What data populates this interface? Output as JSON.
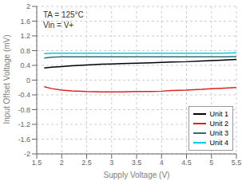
{
  "chart_data": {
    "type": "line",
    "xlabel": "Supply Voltage (V)",
    "ylabel": "Input Offset Voltage (mV)",
    "annotations": [
      "TA = 125°C",
      "Vin = V+"
    ],
    "x": [
      1.65,
      1.8,
      2.0,
      2.2,
      2.5,
      2.8,
      3.0,
      3.2,
      3.5,
      3.8,
      4.0,
      4.2,
      4.5,
      4.8,
      5.0,
      5.2,
      5.5
    ],
    "series": [
      {
        "name": "Unit 1",
        "color": "#000000",
        "values": [
          0.33,
          0.35,
          0.37,
          0.39,
          0.41,
          0.43,
          0.44,
          0.45,
          0.46,
          0.47,
          0.48,
          0.49,
          0.5,
          0.52,
          0.53,
          0.54,
          0.56
        ]
      },
      {
        "name": "Unit 2",
        "color": "#dd2222",
        "values": [
          -0.18,
          -0.23,
          -0.27,
          -0.29,
          -0.31,
          -0.32,
          -0.32,
          -0.32,
          -0.31,
          -0.31,
          -0.3,
          -0.28,
          -0.27,
          -0.25,
          -0.23,
          -0.22,
          -0.2
        ]
      },
      {
        "name": "Unit 3",
        "color": "#2e6e6e",
        "values": [
          0.6,
          0.62,
          0.63,
          0.63,
          0.63,
          0.63,
          0.63,
          0.63,
          0.63,
          0.63,
          0.63,
          0.63,
          0.63,
          0.63,
          0.63,
          0.63,
          0.64
        ]
      },
      {
        "name": "Unit 4",
        "color": "#00ccdd",
        "values": [
          0.72,
          0.73,
          0.73,
          0.73,
          0.73,
          0.73,
          0.73,
          0.73,
          0.73,
          0.73,
          0.73,
          0.73,
          0.73,
          0.73,
          0.73,
          0.73,
          0.74
        ]
      }
    ],
    "xlim": [
      1.5,
      5.5
    ],
    "ylim": [
      -2.0,
      2.0
    ],
    "xticks": [
      1.5,
      2.0,
      2.5,
      3.0,
      3.5,
      4.0,
      4.5,
      5.0,
      5.5
    ],
    "yticks": [
      -2.0,
      -1.6,
      -1.2,
      -0.8,
      -0.4,
      0.0,
      0.4,
      0.8,
      1.2,
      1.6,
      2.0
    ],
    "grid": true,
    "legend": "lower right"
  }
}
